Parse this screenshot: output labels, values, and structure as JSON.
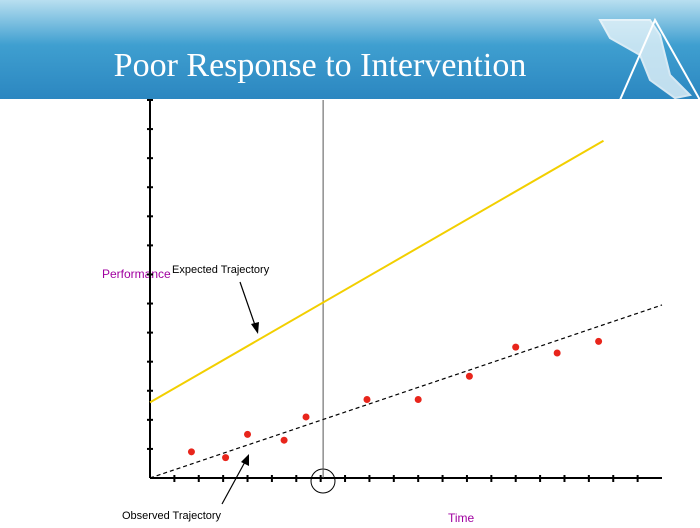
{
  "chart_data": {
    "type": "scatter",
    "title": "Poor Response to Intervention",
    "xlabel": "Time",
    "ylabel": "Performance",
    "x": [
      1.7,
      3.1,
      4.0,
      5.5,
      6.4,
      8.9,
      11.0,
      13.1,
      15.0,
      16.7,
      18.4
    ],
    "values": [
      0.9,
      0.7,
      1.5,
      1.3,
      2.1,
      2.7,
      2.7,
      3.5,
      4.5,
      4.3,
      4.7
    ],
    "color": "#e8251b",
    "lines": [
      {
        "label": "Expected Trajectory",
        "x": [
          0,
          18.6
        ],
        "values": [
          2.6,
          11.6
        ],
        "color": "#f2cf00",
        "dashed": false
      },
      {
        "label": "Observed Trajectory",
        "x": [
          0,
          21
        ],
        "values": [
          0,
          5.95
        ],
        "color": "#000000",
        "dashed": true
      }
    ],
    "vline": 7.1,
    "xlim": [
      0,
      21
    ],
    "ylim": [
      0,
      13
    ],
    "xticks": [
      1,
      2,
      3,
      4,
      5,
      6,
      7,
      8,
      9,
      10,
      11,
      12,
      13,
      14,
      15,
      16,
      17,
      18,
      19,
      20
    ],
    "yticks": [
      1,
      2,
      3,
      4,
      5,
      6,
      7,
      8,
      9,
      10,
      11,
      12,
      13
    ]
  }
}
